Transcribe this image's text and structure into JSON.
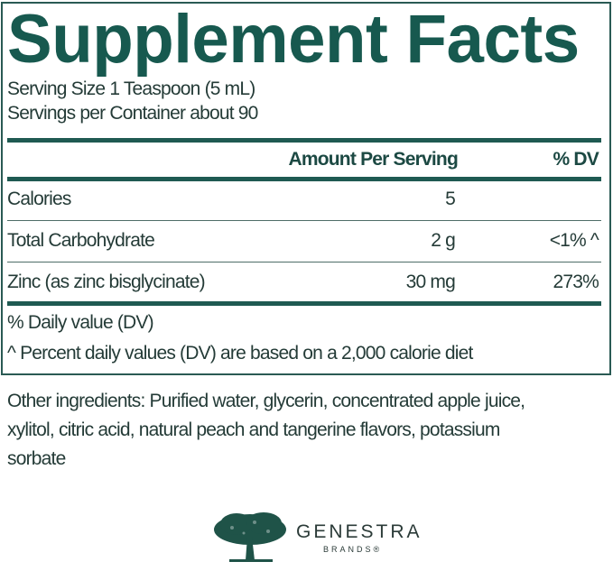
{
  "title": "Supplement Facts",
  "serving_size": "Serving Size 1 Teaspoon (5 mL)",
  "servings_per_container": "Servings per Container about 90",
  "header": {
    "amount": "Amount Per Serving",
    "dv": "% DV"
  },
  "rows": [
    {
      "name": "Calories",
      "amount": "5",
      "dv": ""
    },
    {
      "name": "Total Carbohydrate",
      "amount": "2 g",
      "dv": "<1% ^"
    },
    {
      "name": "Zinc (as zinc bisglycinate)",
      "amount": "30 mg",
      "dv": "273%"
    }
  ],
  "footnotes": [
    "% Daily value (DV)",
    "^  Percent daily values (DV) are based on a 2,000 calorie diet"
  ],
  "ingredients": [
    "Other ingredients: Purified water, glycerin, concentrated apple juice,",
    "xylitol, citric acid, natural peach and tangerine flavors, potassium",
    "sorbate"
  ],
  "brand": {
    "name": "GENESTRA",
    "sub": "BRANDS®",
    "icon": "tree-icon"
  },
  "colors": {
    "accent": "#17594f",
    "text": "#243b37"
  }
}
